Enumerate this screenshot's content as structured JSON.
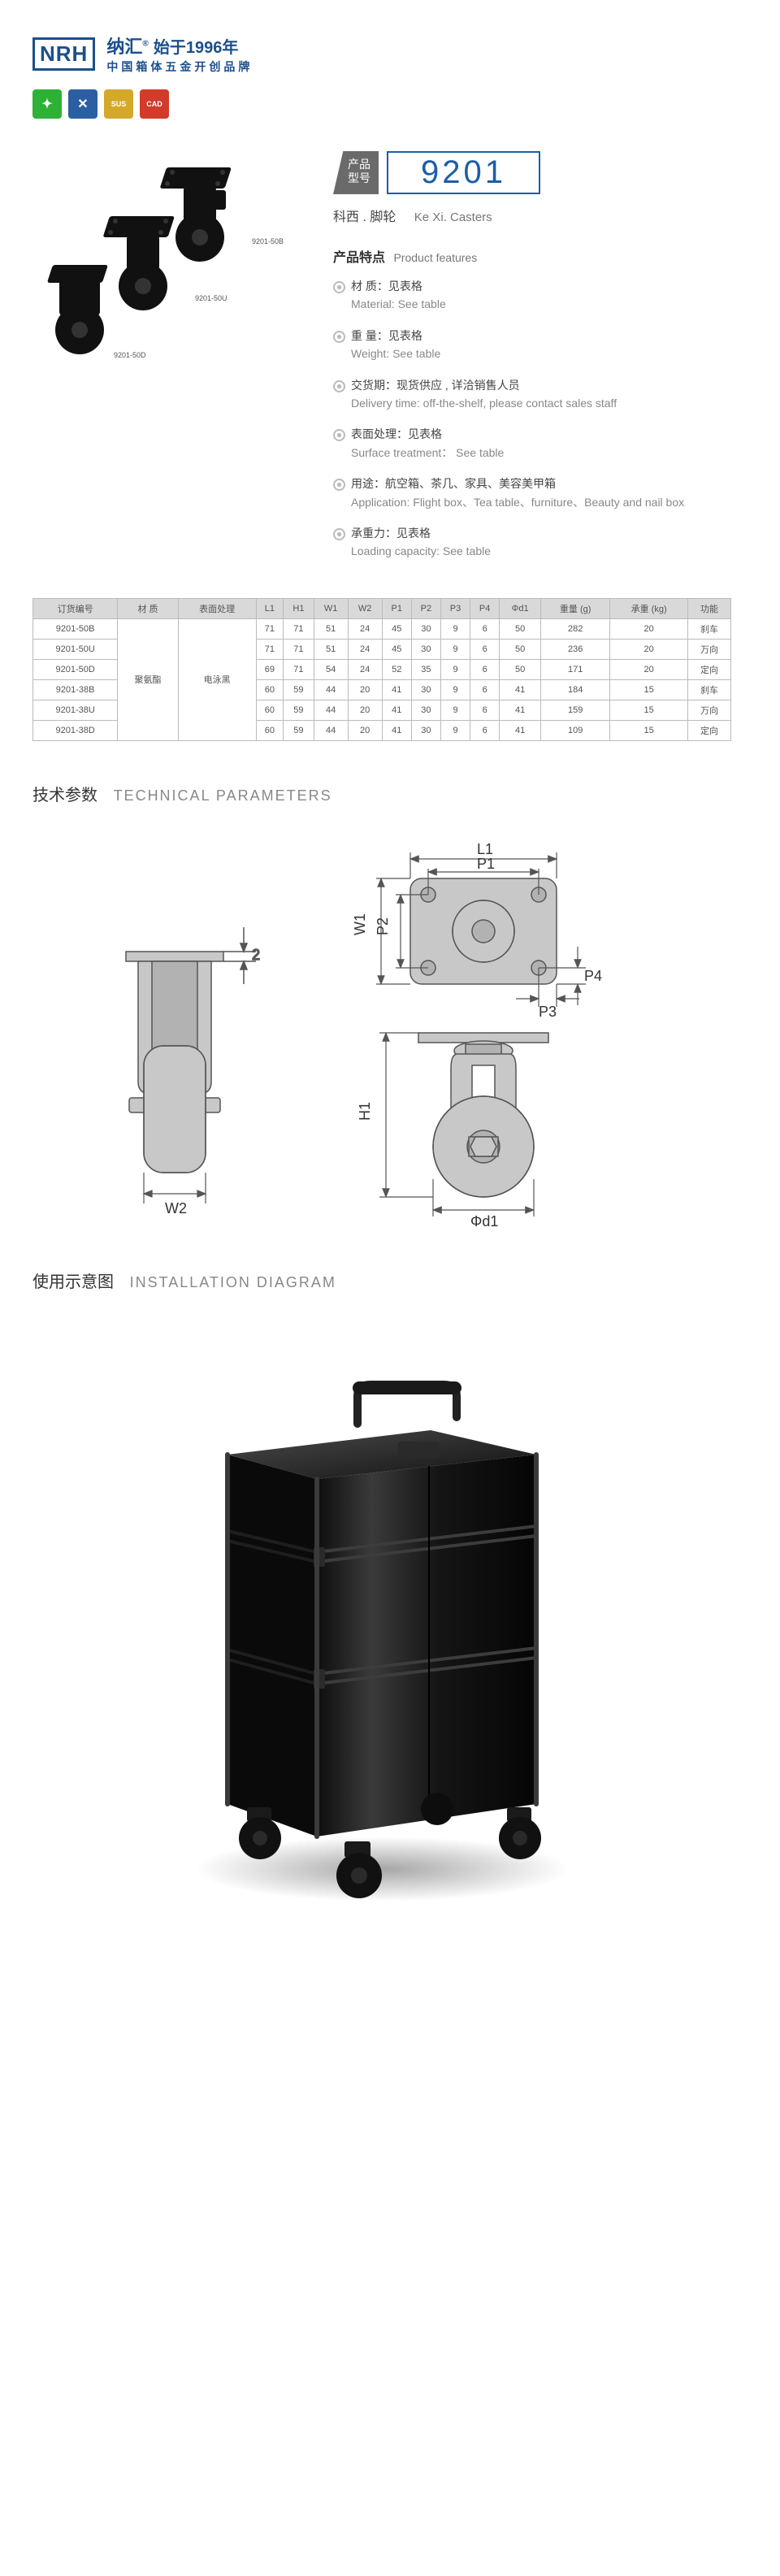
{
  "header": {
    "logo_box": "NRH",
    "logo_cn": "纳汇",
    "logo_reg": "®",
    "logo_year": "始于1996年",
    "logo_sub": "中国箱体五金开创品牌"
  },
  "badges": [
    {
      "color": "#2eb135",
      "glyph": "✦"
    },
    {
      "color": "#2b5fa4",
      "glyph": "✕"
    },
    {
      "color": "#d4a82a",
      "glyph": "SUS"
    },
    {
      "color": "#d23b2a",
      "glyph": "CAD"
    }
  ],
  "product_labels": {
    "a": "9201-50B",
    "b": "9201-50U",
    "c": "9201-50D"
  },
  "model": {
    "tag_l1": "产品",
    "tag_l2": "型号",
    "number": "9201",
    "series_cn": "科西 . 脚轮",
    "series_en": "Ke Xi.  Casters"
  },
  "features": {
    "hd_cn": "产品特点",
    "hd_en": "Product features",
    "items": [
      {
        "cn": "材   质：见表格",
        "en": "Material: See table"
      },
      {
        "cn": "重   量：见表格",
        "en": "Weight: See table"
      },
      {
        "cn": "交货期：现货供应 , 详洽销售人员",
        "en": "Delivery time: off-the-shelf, please contact sales staff"
      },
      {
        "cn": "表面处理：见表格",
        "en": "Surface treatment： See table"
      },
      {
        "cn": "用途：航空箱、茶几、家具、美容美甲箱",
        "en": "Application: Flight box、Tea table、furniture、Beauty and nail box"
      },
      {
        "cn": "承重力：见表格",
        "en": "Loading capacity: See table"
      }
    ]
  },
  "table": {
    "headers": [
      "订货编号",
      "材 质",
      "表面处理",
      "L1",
      "H1",
      "W1",
      "W2",
      "P1",
      "P2",
      "P3",
      "P4",
      "Φd1",
      "重量 (g)",
      "承重 (kg)",
      "功能"
    ],
    "material": "聚氨酯",
    "surface": "电泳黑",
    "rows": [
      [
        "9201-50B",
        "71",
        "71",
        "51",
        "24",
        "45",
        "30",
        "9",
        "6",
        "50",
        "282",
        "20",
        "刹车"
      ],
      [
        "9201-50U",
        "71",
        "71",
        "51",
        "24",
        "45",
        "30",
        "9",
        "6",
        "50",
        "236",
        "20",
        "万向"
      ],
      [
        "9201-50D",
        "69",
        "71",
        "54",
        "24",
        "52",
        "35",
        "9",
        "6",
        "50",
        "171",
        "20",
        "定向"
      ],
      [
        "9201-38B",
        "60",
        "59",
        "44",
        "20",
        "41",
        "30",
        "9",
        "6",
        "41",
        "184",
        "15",
        "刹车"
      ],
      [
        "9201-38U",
        "60",
        "59",
        "44",
        "20",
        "41",
        "30",
        "9",
        "6",
        "41",
        "159",
        "15",
        "万向"
      ],
      [
        "9201-38D",
        "60",
        "59",
        "44",
        "20",
        "41",
        "30",
        "9",
        "6",
        "41",
        "109",
        "15",
        "定向"
      ]
    ]
  },
  "sections": {
    "tech_cn": "技术参数",
    "tech_en": "TECHNICAL PARAMETERS",
    "install_cn": "使用示意图",
    "install_en": "INSTALLATION DIAGRAM"
  },
  "diagram_labels": {
    "L1": "L1",
    "P1": "P1",
    "W1": "W1",
    "P2": "P2",
    "P3": "P3",
    "P4": "P4",
    "W2": "W2",
    "H1": "H1",
    "d1": "Φd1",
    "two": "2"
  },
  "colors": {
    "brand": "#1b4f8b",
    "accent": "#1b5daa",
    "diag_fill": "#c8c8c8",
    "diag_stroke": "#555",
    "table_header_bg": "#d9d9d9"
  }
}
